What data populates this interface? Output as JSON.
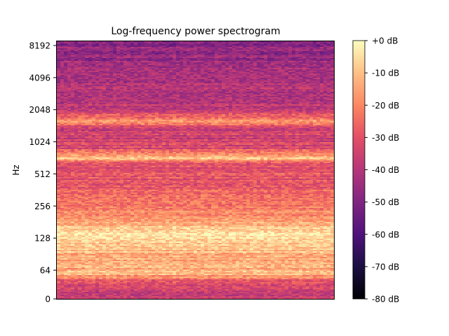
{
  "chart_data": {
    "type": "heatmap",
    "title": "Log-frequency power spectrogram",
    "xlabel": "",
    "ylabel": "Hz",
    "y_scale": "log2 (symlog near 0)",
    "y_ticks": [
      "0",
      "64",
      "128",
      "256",
      "512",
      "1024",
      "2048",
      "4096",
      "8192"
    ],
    "y_tick_values": [
      0,
      64,
      128,
      256,
      512,
      1024,
      2048,
      4096,
      8192
    ],
    "y_range_hz": [
      0,
      11025
    ],
    "colormap": "magma",
    "colorbar": {
      "ticks": [
        "+0 dB",
        "-10 dB",
        "-20 dB",
        "-30 dB",
        "-40 dB",
        "-50 dB",
        "-60 dB",
        "-70 dB",
        "-80 dB"
      ],
      "range_db": [
        -80,
        0
      ]
    },
    "band_profile": [
      {
        "hz": 20,
        "db": -35
      },
      {
        "hz": 40,
        "db": -32
      },
      {
        "hz": 55,
        "db": -12
      },
      {
        "hz": 80,
        "db": -14
      },
      {
        "hz": 110,
        "db": -8
      },
      {
        "hz": 125,
        "db": -3
      },
      {
        "hz": 140,
        "db": -5
      },
      {
        "hz": 170,
        "db": -12
      },
      {
        "hz": 250,
        "db": -22
      },
      {
        "hz": 400,
        "db": -28
      },
      {
        "hz": 650,
        "db": -32
      },
      {
        "hz": 700,
        "db": -8
      },
      {
        "hz": 900,
        "db": -33
      },
      {
        "hz": 1400,
        "db": -36
      },
      {
        "hz": 1550,
        "db": -16
      },
      {
        "hz": 2000,
        "db": -38
      },
      {
        "hz": 4000,
        "db": -42
      },
      {
        "hz": 8000,
        "db": -48
      },
      {
        "hz": 11025,
        "db": -52
      }
    ]
  }
}
